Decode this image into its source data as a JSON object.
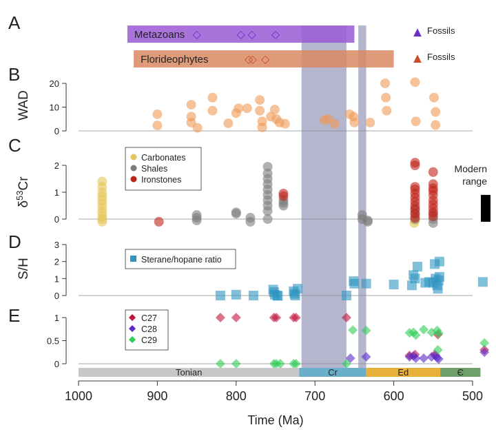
{
  "figure": {
    "panel_letters": [
      "A",
      "B",
      "C",
      "D",
      "E"
    ],
    "x_axis": {
      "label": "Time (Ma)",
      "ticks": [
        "1000",
        "900",
        "800",
        "700",
        "600",
        "500"
      ],
      "range": [
        1000,
        490
      ],
      "reversed": true
    },
    "panel_a": {
      "bars": [
        {
          "label": "Metazoans",
          "start": 938,
          "end": 650,
          "color": "#9b5bd6",
          "marker": "◇",
          "marker_color": "#6a2fc4",
          "fossil_ages": [
            850,
            794,
            780,
            750
          ]
        },
        {
          "label": "Florideophytes",
          "start": 930,
          "end": 600,
          "color": "#d98a62",
          "marker": "◇",
          "marker_color": "#c7502a",
          "fossil_ages": [
            784,
            779,
            763
          ]
        }
      ],
      "legend": [
        {
          "label": "Fossils",
          "marker": "▲",
          "color": "#6a2fc4"
        },
        {
          "label": "Fossils",
          "marker": "▲",
          "color": "#c7502a"
        }
      ]
    },
    "shaded_intervals": [
      {
        "start": 717,
        "end": 660,
        "color": "#8c8fb4"
      },
      {
        "start": 645,
        "end": 635,
        "color": "#8c8fb4"
      }
    ],
    "periods": [
      {
        "label": "Tonian",
        "start": 1000,
        "end": 720,
        "color": "#c7c7c7"
      },
      {
        "label": "Cr",
        "start": 720,
        "end": 635,
        "color": "#6aaec8"
      },
      {
        "label": "Ed",
        "start": 635,
        "end": 541,
        "color": "#e8b23a"
      },
      {
        "label": "Є",
        "start": 541,
        "end": 485,
        "color": "#6f9f6a"
      }
    ],
    "panel_c_extra": {
      "modern_range_label_1": "Modern",
      "modern_range_label_2": "range",
      "modern_range": [
        -0.1,
        0.9
      ]
    }
  },
  "chart_data": [
    {
      "panel": "B",
      "type": "scatter",
      "ylabel": "WAD",
      "yticks": [
        "0",
        "10",
        "20"
      ],
      "ylim": [
        0,
        22
      ],
      "series": [
        {
          "color": "#ef9a56",
          "points": [
            [
              900,
              7
            ],
            [
              900,
              2.3
            ],
            [
              857,
              11
            ],
            [
              857,
              6
            ],
            [
              857,
              3.5
            ],
            [
              849,
              1.3
            ],
            [
              830,
              14
            ],
            [
              830,
              8.5
            ],
            [
              810,
              3.2
            ],
            [
              800,
              7.5
            ],
            [
              797,
              9.5
            ],
            [
              786,
              9.5
            ],
            [
              770,
              13
            ],
            [
              770,
              8.5
            ],
            [
              767,
              1.5
            ],
            [
              767,
              4
            ],
            [
              756,
              6
            ],
            [
              751,
              9
            ],
            [
              749,
              5
            ],
            [
              745,
              3.5
            ],
            [
              738,
              3
            ],
            [
              688,
              4.5
            ],
            [
              683,
              5
            ],
            [
              675,
              3
            ],
            [
              656,
              7
            ],
            [
              651,
              6
            ],
            [
              650,
              3.5
            ],
            [
              630,
              3.5
            ],
            [
              611,
              20
            ],
            [
              610,
              14
            ],
            [
              609,
              8.5
            ],
            [
              573,
              20.5
            ],
            [
              572,
              4
            ],
            [
              549,
              14
            ],
            [
              547,
              8
            ],
            [
              547,
              2.5
            ]
          ]
        }
      ]
    },
    {
      "panel": "C",
      "type": "scatter",
      "ylabel": "δ53Cr",
      "yticks": [
        "0",
        "1",
        "2"
      ],
      "ylim": [
        -0.3,
        2.3
      ],
      "series": [
        {
          "name": "Carbonates",
          "color": "#e4c65c",
          "points": [
            [
              970,
              1.4
            ],
            [
              970,
              1.2
            ],
            [
              970,
              1.0
            ],
            [
              970,
              0.85
            ],
            [
              970,
              0.7
            ],
            [
              970,
              0.55
            ],
            [
              970,
              0.4
            ],
            [
              970,
              0.25
            ],
            [
              970,
              0.1
            ],
            [
              970,
              0.0
            ],
            [
              970,
              -0.1
            ],
            [
              574,
              -0.15
            ],
            [
              573,
              -0.05
            ]
          ]
        },
        {
          "name": "Shales",
          "color": "#7d7d7d",
          "points": [
            [
              850,
              0.15
            ],
            [
              850,
              0.05
            ],
            [
              850,
              -0.05
            ],
            [
              800,
              0.25
            ],
            [
              800,
              0.2
            ],
            [
              782,
              0.05
            ],
            [
              782,
              -0.1
            ],
            [
              760,
              0.3
            ],
            [
              760,
              0.5
            ],
            [
              760,
              0.7
            ],
            [
              760,
              0.9
            ],
            [
              760,
              1.1
            ],
            [
              760,
              1.3
            ],
            [
              760,
              1.5
            ],
            [
              760,
              1.7
            ],
            [
              760,
              1.95
            ],
            [
              760,
              0.0
            ],
            [
              740,
              0.7
            ],
            [
              740,
              0.5
            ],
            [
              740,
              0.6
            ],
            [
              640,
              0.15
            ],
            [
              640,
              0.0
            ],
            [
              633,
              -0.05
            ],
            [
              633,
              -0.1
            ],
            [
              573,
              0.2
            ],
            [
              573,
              0.4
            ],
            [
              573,
              0.0
            ],
            [
              550,
              0.0
            ],
            [
              550,
              0.2
            ],
            [
              550,
              -0.15
            ]
          ]
        },
        {
          "name": "Ironstones",
          "color": "#c0241b",
          "points": [
            [
              898,
              -0.1
            ],
            [
              740,
              0.95
            ],
            [
              740,
              0.85
            ],
            [
              573,
              2.1
            ],
            [
              573,
              2.0
            ],
            [
              573,
              1.2
            ],
            [
              573,
              1.1
            ],
            [
              573,
              0.95
            ],
            [
              573,
              0.8
            ],
            [
              573,
              0.65
            ],
            [
              573,
              0.5
            ],
            [
              573,
              0.35
            ],
            [
              573,
              0.2
            ],
            [
              573,
              0.05
            ],
            [
              550,
              1.75
            ],
            [
              550,
              1.3
            ],
            [
              550,
              1.15
            ],
            [
              550,
              1.05
            ],
            [
              550,
              0.9
            ],
            [
              550,
              0.7
            ],
            [
              550,
              0.55
            ],
            [
              550,
              0.4
            ],
            [
              550,
              0.25
            ],
            [
              550,
              0.1
            ]
          ]
        }
      ]
    },
    {
      "panel": "D",
      "type": "scatter",
      "ylabel": "S/H",
      "yticks": [
        "0",
        "1",
        "2",
        "3"
      ],
      "ylim": [
        -0.2,
        3.1
      ],
      "series": [
        {
          "name": "Sterane/hopane ratio",
          "color": "#2e95c0",
          "points": [
            [
              820,
              0.0
            ],
            [
              800,
              0.05
            ],
            [
              778,
              0.0
            ],
            [
              753,
              0.35
            ],
            [
              752,
              0.2
            ],
            [
              751,
              0.05
            ],
            [
              748,
              0.0
            ],
            [
              747,
              -0.02
            ],
            [
              727,
              0.25
            ],
            [
              726,
              0.1
            ],
            [
              725,
              0.0
            ],
            [
              722,
              0.4
            ],
            [
              660,
              0.0
            ],
            [
              651,
              0.85
            ],
            [
              650,
              0.7
            ],
            [
              635,
              0.7
            ],
            [
              600,
              0.65
            ],
            [
              577,
              0.6
            ],
            [
              575,
              1.2
            ],
            [
              573,
              1.0
            ],
            [
              570,
              1.7
            ],
            [
              560,
              0.75
            ],
            [
              555,
              0.8
            ],
            [
              550,
              0.75
            ],
            [
              548,
              1.85
            ],
            [
              547,
              1.0
            ],
            [
              545,
              0.6
            ],
            [
              544,
              0.4
            ],
            [
              543,
              0.9
            ],
            [
              542,
              2.0
            ],
            [
              542,
              1.1
            ],
            [
              487,
              0.8
            ]
          ]
        }
      ]
    },
    {
      "panel": "E",
      "type": "scatter",
      "ylabel": "",
      "yticks": [
        "0",
        "0.5",
        "1"
      ],
      "ylim": [
        -0.05,
        1.15
      ],
      "series": [
        {
          "name": "C27",
          "color": "#c0143c",
          "points": [
            [
              820,
              1.0
            ],
            [
              800,
              1.0
            ],
            [
              752,
              1.0
            ],
            [
              749,
              1.0
            ],
            [
              727,
              1.0
            ],
            [
              724,
              1.0
            ],
            [
              660,
              1.0
            ],
            [
              544,
              0.63
            ],
            [
              580,
              0.18
            ],
            [
              573,
              0.2
            ],
            [
              548,
              0.2
            ],
            [
              485,
              0.3
            ]
          ]
        },
        {
          "name": "C28",
          "color": "#5a28c8",
          "points": [
            [
              655,
              0.12
            ],
            [
              635,
              0.15
            ],
            [
              580,
              0.15
            ],
            [
              575,
              0.17
            ],
            [
              572,
              0.12
            ],
            [
              562,
              0.12
            ],
            [
              552,
              0.15
            ],
            [
              547,
              0.18
            ],
            [
              545,
              0.13
            ],
            [
              543,
              0.1
            ],
            [
              485,
              0.25
            ]
          ]
        },
        {
          "name": "C29",
          "color": "#2ecc55",
          "points": [
            [
              820,
              0.0
            ],
            [
              800,
              0.0
            ],
            [
              752,
              0.0
            ],
            [
              749,
              0.0
            ],
            [
              744,
              0.0
            ],
            [
              727,
              0.0
            ],
            [
              724,
              0.0
            ],
            [
              660,
              0.0
            ],
            [
              652,
              0.73
            ],
            [
              635,
              0.72
            ],
            [
              580,
              0.67
            ],
            [
              575,
              0.68
            ],
            [
              572,
              0.62
            ],
            [
              562,
              0.74
            ],
            [
              552,
              0.68
            ],
            [
              545,
              0.72
            ],
            [
              543,
              0.66
            ],
            [
              544,
              0.3
            ],
            [
              485,
              0.45
            ]
          ]
        }
      ]
    }
  ]
}
